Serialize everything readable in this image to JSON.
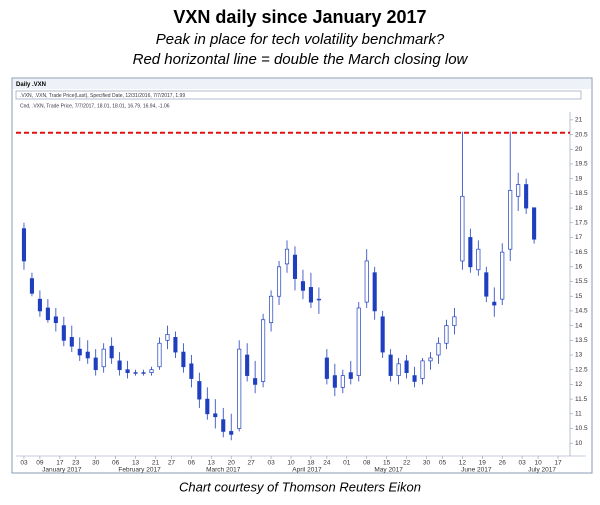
{
  "chart_data": {
    "type": "candlestick",
    "title": "VXN daily since January 2017",
    "subtitle": [
      "Peak in place for tech volatility benchmark?",
      "Red horizontal line = double the March closing low"
    ],
    "caption": "Chart courtesy of Thomson Reuters Eikon",
    "panel_title": "Daily .VXN",
    "legend_lines": [
      ".VXN, .VXN, Trade Price(Last), Specified Date, 12/31/2016, 7/7/2017, 1.99",
      "Cnd, .VXN, Trade Price, 7/7/2017, 18.01, 18.01, 16.79, 16.94, -1.06"
    ],
    "up_color": "#ffffff",
    "down_color": "#1f3fbf",
    "stroke_color": "#1f3fbf",
    "reference_line": {
      "value": 20.56,
      "color": "#e01010"
    },
    "x": [
      0,
      2,
      4,
      6,
      8,
      10,
      12,
      14,
      16,
      18,
      20,
      22,
      24,
      26,
      28,
      30,
      32,
      34,
      36,
      38,
      40,
      42,
      44,
      46,
      48,
      50,
      52,
      54,
      56,
      58,
      60,
      62,
      64,
      66,
      68,
      70,
      72,
      74,
      76,
      78,
      80,
      82,
      84,
      86,
      88,
      90,
      92,
      94,
      96,
      98,
      100,
      102,
      104,
      106,
      108,
      110,
      112,
      114,
      116,
      118,
      120,
      122,
      124,
      126,
      128
    ],
    "open": [
      17.3,
      15.6,
      14.9,
      14.6,
      14.3,
      14.0,
      13.6,
      13.2,
      13.1,
      12.9,
      12.6,
      13.3,
      12.8,
      12.5,
      12.4,
      12.4,
      12.4,
      12.6,
      13.5,
      13.6,
      13.1,
      12.7,
      12.1,
      11.5,
      11.0,
      10.8,
      10.4,
      10.5,
      13.0,
      12.2,
      12.1,
      14.1,
      15.0,
      16.1,
      16.4,
      15.5,
      15.3,
      14.9,
      12.9,
      12.3,
      11.9,
      12.4,
      12.3,
      14.8,
      15.8,
      14.3,
      13.0,
      12.3,
      12.8,
      12.3,
      12.2,
      12.8,
      13.0,
      13.4,
      14.0,
      16.2,
      17.0,
      15.9,
      15.8,
      14.8,
      14.9,
      16.6,
      18.4,
      18.8,
      18.01
    ],
    "high": [
      17.5,
      15.8,
      15.2,
      14.9,
      14.6,
      14.3,
      14.0,
      13.6,
      13.5,
      13.2,
      13.4,
      13.6,
      13.1,
      12.8,
      12.5,
      12.5,
      12.6,
      13.6,
      14.0,
      13.8,
      13.4,
      13.0,
      12.4,
      11.9,
      11.5,
      11.2,
      11.0,
      13.5,
      13.4,
      12.8,
      14.4,
      15.2,
      16.2,
      16.9,
      16.7,
      15.9,
      15.8,
      15.3,
      13.2,
      12.7,
      12.5,
      12.8,
      14.8,
      16.6,
      16.0,
      14.5,
      13.2,
      12.9,
      13.0,
      12.6,
      12.9,
      13.1,
      13.6,
      14.2,
      14.6,
      20.6,
      17.3,
      16.9,
      16.0,
      15.3,
      16.8,
      20.6,
      19.2,
      19.0,
      18.01
    ],
    "low": [
      15.9,
      15.0,
      14.3,
      14.1,
      13.8,
      13.3,
      13.1,
      12.8,
      12.7,
      12.3,
      12.4,
      12.7,
      12.3,
      12.2,
      12.3,
      12.3,
      12.3,
      12.5,
      13.2,
      12.9,
      12.4,
      11.9,
      11.2,
      10.8,
      10.5,
      10.2,
      10.1,
      10.4,
      12.1,
      11.7,
      11.9,
      13.8,
      14.7,
      15.8,
      15.2,
      14.9,
      14.6,
      14.4,
      12.0,
      11.6,
      11.7,
      12.0,
      12.1,
      14.6,
      14.2,
      12.9,
      12.1,
      12.0,
      12.2,
      11.9,
      12.0,
      12.5,
      12.7,
      13.2,
      13.7,
      15.9,
      15.8,
      15.7,
      14.8,
      14.3,
      14.7,
      16.2,
      17.9,
      17.8,
      16.79
    ],
    "close": [
      16.2,
      15.1,
      14.5,
      14.2,
      14.1,
      13.5,
      13.3,
      13.0,
      12.9,
      12.5,
      13.2,
      12.9,
      12.5,
      12.4,
      12.4,
      12.4,
      12.5,
      13.4,
      13.7,
      13.1,
      12.6,
      12.2,
      11.5,
      11.0,
      10.9,
      10.4,
      10.3,
      13.2,
      12.3,
      12.0,
      14.2,
      15.0,
      16.0,
      16.6,
      15.6,
      15.2,
      14.8,
      14.9,
      12.2,
      11.9,
      12.3,
      12.2,
      14.6,
      16.2,
      14.5,
      13.1,
      12.3,
      12.7,
      12.4,
      12.1,
      12.8,
      12.9,
      13.4,
      14.0,
      14.3,
      18.4,
      16.0,
      16.6,
      15.0,
      14.7,
      16.5,
      18.6,
      18.8,
      18.0,
      16.94
    ],
    "xlim": [
      -2,
      136
    ],
    "xticks": [
      {
        "value": 0,
        "label": "03"
      },
      {
        "value": 4,
        "label": "09"
      },
      {
        "value": 9,
        "label": "17"
      },
      {
        "value": 13,
        "label": "23"
      },
      {
        "value": 18,
        "label": "30"
      },
      {
        "value": 23,
        "label": "06"
      },
      {
        "value": 28,
        "label": "13"
      },
      {
        "value": 33,
        "label": "21"
      },
      {
        "value": 37,
        "label": "27"
      },
      {
        "value": 42,
        "label": "06"
      },
      {
        "value": 47,
        "label": "13"
      },
      {
        "value": 52,
        "label": "20"
      },
      {
        "value": 57,
        "label": "27"
      },
      {
        "value": 62,
        "label": "03"
      },
      {
        "value": 67,
        "label": "10"
      },
      {
        "value": 72,
        "label": "18"
      },
      {
        "value": 76,
        "label": "24"
      },
      {
        "value": 81,
        "label": "01"
      },
      {
        "value": 86,
        "label": "08"
      },
      {
        "value": 91,
        "label": "15"
      },
      {
        "value": 96,
        "label": "22"
      },
      {
        "value": 101,
        "label": "30"
      },
      {
        "value": 105,
        "label": "05"
      },
      {
        "value": 110,
        "label": "12"
      },
      {
        "value": 115,
        "label": "19"
      },
      {
        "value": 120,
        "label": "26"
      },
      {
        "value": 125,
        "label": "03"
      },
      {
        "value": 129,
        "label": "10"
      },
      {
        "value": 134,
        "label": "17"
      }
    ],
    "month_labels": [
      {
        "value": 9.5,
        "label": "January 2017"
      },
      {
        "value": 29,
        "label": "February 2017"
      },
      {
        "value": 50,
        "label": "March 2017"
      },
      {
        "value": 71,
        "label": "April 2017"
      },
      {
        "value": 91.5,
        "label": "May 2017"
      },
      {
        "value": 113.5,
        "label": "June 2017"
      },
      {
        "value": 130,
        "label": "July 2017"
      }
    ],
    "ylim": [
      9.7,
      21.2
    ],
    "yticks": [
      10,
      10.5,
      11,
      11.5,
      12,
      12.5,
      13,
      13.5,
      14,
      14.5,
      15,
      15.5,
      16,
      16.5,
      17,
      17.5,
      18,
      18.5,
      19,
      19.5,
      20,
      20.5,
      21
    ],
    "grid": false
  }
}
